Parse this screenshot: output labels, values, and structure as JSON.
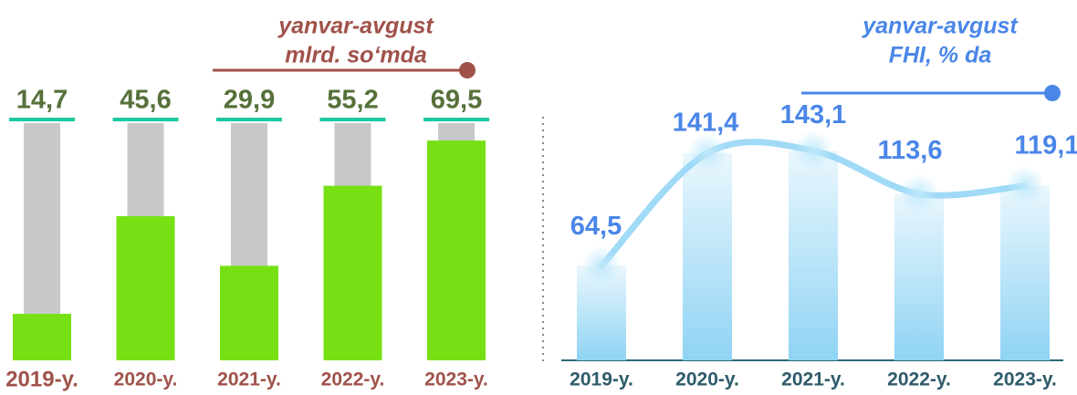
{
  "chart_data": [
    {
      "type": "bar",
      "subtitle": [
        "yanvar-avgust",
        "mlrd. so‘mda"
      ],
      "categories": [
        "2019-y.",
        "2020-y.",
        "2021-y.",
        "2022-y.",
        "2023-y."
      ],
      "values": [
        14.7,
        45.6,
        29.9,
        55.2,
        69.5
      ],
      "value_labels": [
        "14,7",
        "45,6",
        "29,9",
        "55,2",
        "69,5"
      ],
      "color": "#77e015",
      "background_color": "#c8c8c8",
      "ylim": [
        0,
        75
      ]
    },
    {
      "type": "line",
      "subtitle": [
        "yanvar-avgust",
        "FHI, % da"
      ],
      "categories": [
        "2019-y.",
        "2020-y.",
        "2021-y.",
        "2022-y.",
        "2023-y."
      ],
      "values": [
        64.5,
        141.4,
        143.1,
        113.6,
        119.1
      ],
      "value_labels": [
        "64,5",
        "141,4",
        "143,1",
        "113,6",
        "119,1"
      ],
      "color": "#8fd3f4",
      "ylim": [
        0,
        160
      ]
    }
  ]
}
